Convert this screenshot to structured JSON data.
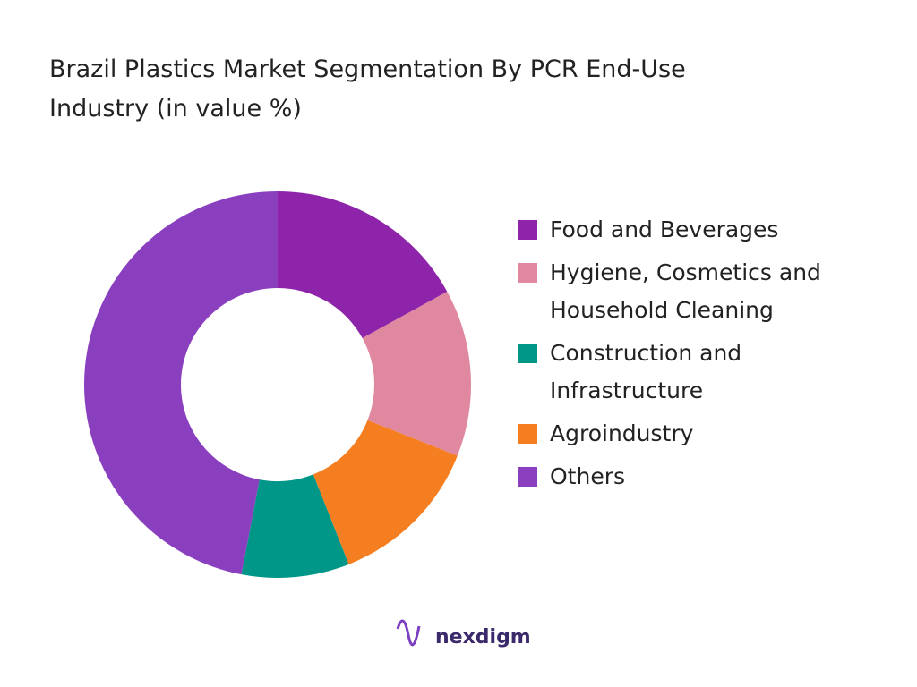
{
  "chart_data": {
    "type": "donut",
    "title": "Brazil Plastics Market Segmentation By PCR End-Use Industry  (in value %)",
    "categories": [
      "Food and Beverages",
      "Hygiene, Cosmetics and Household Cleaning",
      "Construction and Infrastructure",
      "Agroindustry",
      "Others"
    ],
    "values": [
      17,
      14,
      9,
      13,
      47
    ],
    "colors": [
      "#8e24aa",
      "#e088a0",
      "#009688",
      "#f57f20",
      "#8a3fbf"
    ],
    "draw_order": [
      0,
      1,
      3,
      2,
      4
    ],
    "legend": "right"
  },
  "brand": "nexdigm"
}
